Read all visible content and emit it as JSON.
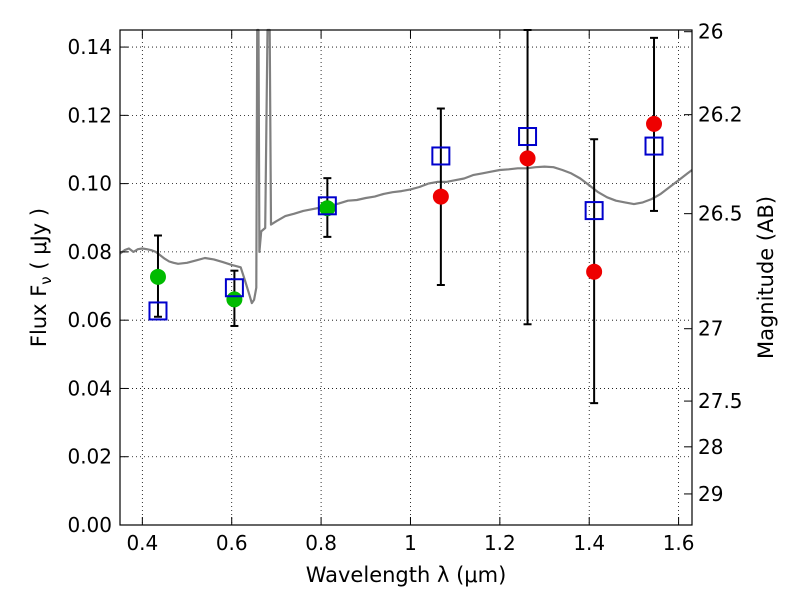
{
  "chart_data": {
    "type": "scatter",
    "title": "",
    "xlabel": "Wavelength  λ (μm)",
    "ylabel": "Flux  F_ν  ( μJy )",
    "ylabel_right": "Magnitude (AB)",
    "xlim": [
      0.35,
      1.63
    ],
    "ylim": [
      0.0,
      0.145
    ],
    "x_ticks": [
      0.4,
      0.6,
      0.8,
      1.0,
      1.2,
      1.4,
      1.6
    ],
    "x_tick_labels": [
      "0.4",
      "0.6",
      "0.8",
      "1",
      "1.2",
      "1.4",
      "1.6"
    ],
    "y_ticks": [
      0.0,
      0.02,
      0.04,
      0.06,
      0.08,
      0.1,
      0.12,
      0.14
    ],
    "y_tick_labels": [
      "0.00",
      "0.02",
      "0.04",
      "0.06",
      "0.08",
      "0.10",
      "0.12",
      "0.14"
    ],
    "right_ticks": [
      {
        "label": "26",
        "flux": 0.1445
      },
      {
        "label": "26.2",
        "flux": 0.1202
      },
      {
        "label": "26.5",
        "flux": 0.0912
      },
      {
        "label": "27",
        "flux": 0.0575
      },
      {
        "label": "27.5",
        "flux": 0.0363
      },
      {
        "label": "28",
        "flux": 0.0229
      },
      {
        "label": "29",
        "flux": 0.0091
      }
    ],
    "grid": true,
    "series": [
      {
        "marker": "circle",
        "color": "#00bb00",
        "points": [
          {
            "x": 0.435,
            "y": 0.0727
          },
          {
            "x": 0.606,
            "y": 0.0661
          },
          {
            "x": 0.814,
            "y": 0.0928
          }
        ]
      },
      {
        "marker": "circle",
        "color": "#ee0000",
        "points": [
          {
            "x": 1.068,
            "y": 0.0962
          },
          {
            "x": 1.262,
            "y": 0.1074
          },
          {
            "x": 1.411,
            "y": 0.0742
          },
          {
            "x": 1.545,
            "y": 0.1175
          }
        ]
      },
      {
        "marker": "square-open",
        "color": "#0000cc",
        "points": [
          {
            "x": 0.435,
            "y": 0.0627
          },
          {
            "x": 0.606,
            "y": 0.0695
          },
          {
            "x": 0.814,
            "y": 0.0935
          },
          {
            "x": 1.068,
            "y": 0.1081
          },
          {
            "x": 1.262,
            "y": 0.1138
          },
          {
            "x": 1.411,
            "y": 0.0921
          },
          {
            "x": 1.545,
            "y": 0.111
          }
        ]
      }
    ],
    "error_bars": [
      {
        "x": 0.435,
        "low": 0.061,
        "high": 0.0848
      },
      {
        "x": 0.606,
        "low": 0.0583,
        "high": 0.0745
      },
      {
        "x": 0.814,
        "low": 0.0844,
        "high": 0.1016
      },
      {
        "x": 1.068,
        "low": 0.0703,
        "high": 0.122
      },
      {
        "x": 1.262,
        "low": 0.0588,
        "high": 0.146
      },
      {
        "x": 1.411,
        "low": 0.0357,
        "high": 0.113
      },
      {
        "x": 1.545,
        "low": 0.092,
        "high": 0.1427
      }
    ],
    "model_spectrum": {
      "color": "#808080",
      "points": [
        [
          0.35,
          0.0795
        ],
        [
          0.36,
          0.0805
        ],
        [
          0.37,
          0.081
        ],
        [
          0.38,
          0.08
        ],
        [
          0.39,
          0.0808
        ],
        [
          0.4,
          0.081
        ],
        [
          0.41,
          0.0808
        ],
        [
          0.42,
          0.0805
        ],
        [
          0.43,
          0.08
        ],
        [
          0.44,
          0.079
        ],
        [
          0.45,
          0.078
        ],
        [
          0.46,
          0.0772
        ],
        [
          0.47,
          0.0768
        ],
        [
          0.48,
          0.0765
        ],
        [
          0.5,
          0.0768
        ],
        [
          0.52,
          0.0775
        ],
        [
          0.54,
          0.0782
        ],
        [
          0.56,
          0.0778
        ],
        [
          0.58,
          0.077
        ],
        [
          0.6,
          0.0762
        ],
        [
          0.62,
          0.0755
        ],
        [
          0.63,
          0.0715
        ],
        [
          0.64,
          0.0672
        ],
        [
          0.645,
          0.065
        ],
        [
          0.65,
          0.066
        ],
        [
          0.655,
          0.0695
        ],
        [
          0.657,
          0.145
        ],
        [
          0.66,
          0.145
        ],
        [
          0.662,
          0.08
        ],
        [
          0.666,
          0.086
        ],
        [
          0.675,
          0.087
        ],
        [
          0.68,
          0.145
        ],
        [
          0.685,
          0.145
        ],
        [
          0.688,
          0.088
        ],
        [
          0.7,
          0.089
        ],
        [
          0.72,
          0.0905
        ],
        [
          0.74,
          0.0912
        ],
        [
          0.76,
          0.092
        ],
        [
          0.78,
          0.0925
        ],
        [
          0.8,
          0.093
        ],
        [
          0.82,
          0.0935
        ],
        [
          0.84,
          0.0942
        ],
        [
          0.86,
          0.095
        ],
        [
          0.88,
          0.0952
        ],
        [
          0.9,
          0.0958
        ],
        [
          0.92,
          0.0962
        ],
        [
          0.94,
          0.097
        ],
        [
          0.96,
          0.0975
        ],
        [
          0.98,
          0.0978
        ],
        [
          1.0,
          0.0983
        ],
        [
          1.02,
          0.099
        ],
        [
          1.04,
          0.1
        ],
        [
          1.06,
          0.1005
        ],
        [
          1.08,
          0.1005
        ],
        [
          1.1,
          0.101
        ],
        [
          1.12,
          0.1015
        ],
        [
          1.14,
          0.1025
        ],
        [
          1.16,
          0.103
        ],
        [
          1.18,
          0.1035
        ],
        [
          1.2,
          0.104
        ],
        [
          1.22,
          0.1042
        ],
        [
          1.24,
          0.1045
        ],
        [
          1.26,
          0.1045
        ],
        [
          1.28,
          0.1048
        ],
        [
          1.3,
          0.105
        ],
        [
          1.32,
          0.1048
        ],
        [
          1.34,
          0.104
        ],
        [
          1.36,
          0.103
        ],
        [
          1.38,
          0.1015
        ],
        [
          1.4,
          0.0995
        ],
        [
          1.42,
          0.0975
        ],
        [
          1.44,
          0.096
        ],
        [
          1.46,
          0.095
        ],
        [
          1.48,
          0.0945
        ],
        [
          1.5,
          0.094
        ],
        [
          1.52,
          0.0945
        ],
        [
          1.54,
          0.0955
        ],
        [
          1.56,
          0.097
        ],
        [
          1.58,
          0.099
        ],
        [
          1.6,
          0.101
        ],
        [
          1.62,
          0.103
        ],
        [
          1.63,
          0.104
        ]
      ]
    }
  }
}
